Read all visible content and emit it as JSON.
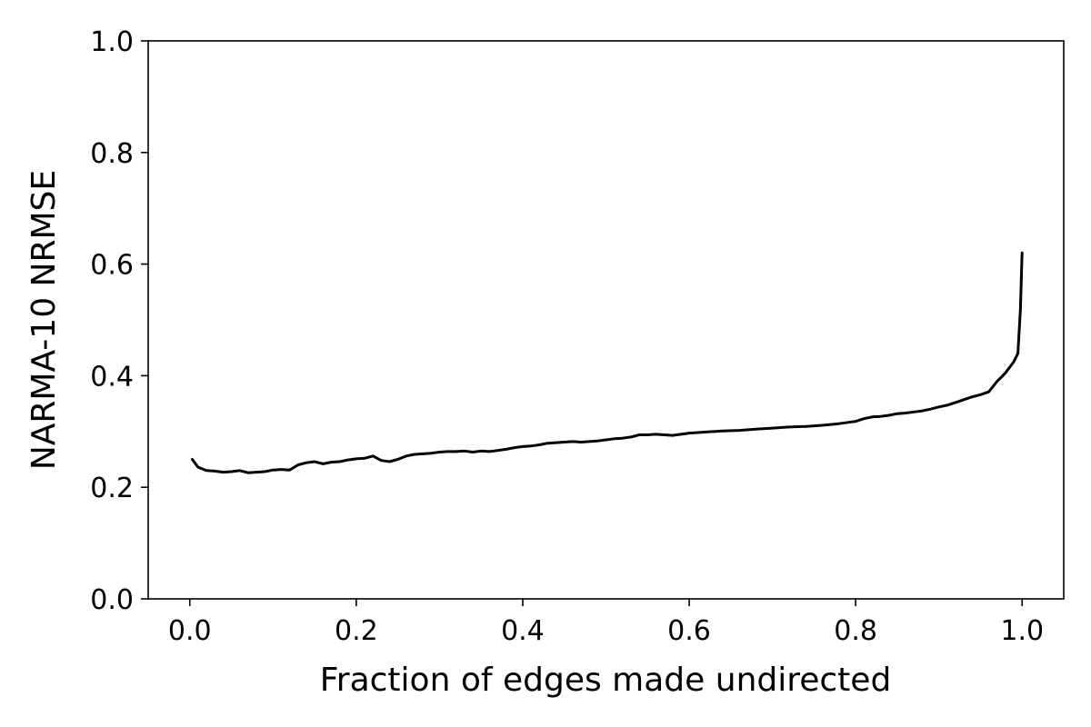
{
  "chart_data": {
    "type": "line",
    "title": "",
    "xlabel": "Fraction of edges made undirected",
    "ylabel": "NARMA-10 NRMSE",
    "xlim": [
      -0.05,
      1.05
    ],
    "ylim": [
      0.0,
      1.0
    ],
    "xticks": [
      0.0,
      0.2,
      0.4,
      0.6,
      0.8,
      1.0
    ],
    "xtick_labels": [
      "0.0",
      "0.2",
      "0.4",
      "0.6",
      "0.8",
      "1.0"
    ],
    "yticks": [
      0.0,
      0.2,
      0.4,
      0.6,
      0.8,
      1.0
    ],
    "ytick_labels": [
      "0.0",
      "0.2",
      "0.4",
      "0.6",
      "0.8",
      "1.0"
    ],
    "grid": false,
    "line_color": "#000000",
    "series": [
      {
        "x": [
          0.003,
          0.01,
          0.02,
          0.03,
          0.04,
          0.05,
          0.06,
          0.07,
          0.08,
          0.09,
          0.1,
          0.11,
          0.12,
          0.13,
          0.14,
          0.15,
          0.16,
          0.17,
          0.18,
          0.19,
          0.2,
          0.21,
          0.22,
          0.23,
          0.24,
          0.25,
          0.26,
          0.27,
          0.28,
          0.29,
          0.3,
          0.31,
          0.32,
          0.33,
          0.34,
          0.35,
          0.36,
          0.37,
          0.38,
          0.39,
          0.4,
          0.41,
          0.42,
          0.43,
          0.44,
          0.45,
          0.46,
          0.47,
          0.48,
          0.49,
          0.5,
          0.51,
          0.52,
          0.53,
          0.54,
          0.55,
          0.56,
          0.57,
          0.58,
          0.59,
          0.6,
          0.62,
          0.64,
          0.66,
          0.68,
          0.7,
          0.72,
          0.74,
          0.76,
          0.78,
          0.8,
          0.81,
          0.82,
          0.83,
          0.84,
          0.85,
          0.86,
          0.87,
          0.88,
          0.89,
          0.9,
          0.91,
          0.92,
          0.93,
          0.94,
          0.95,
          0.96,
          0.97,
          0.975,
          0.98,
          0.985,
          0.99,
          0.995,
          0.998,
          1.0
        ],
        "y": [
          0.25,
          0.236,
          0.23,
          0.229,
          0.227,
          0.228,
          0.23,
          0.226,
          0.227,
          0.228,
          0.231,
          0.232,
          0.231,
          0.24,
          0.244,
          0.246,
          0.242,
          0.245,
          0.246,
          0.249,
          0.251,
          0.252,
          0.256,
          0.248,
          0.246,
          0.25,
          0.256,
          0.259,
          0.26,
          0.261,
          0.263,
          0.264,
          0.264,
          0.265,
          0.263,
          0.265,
          0.264,
          0.266,
          0.268,
          0.271,
          0.273,
          0.274,
          0.276,
          0.279,
          0.28,
          0.281,
          0.282,
          0.281,
          0.282,
          0.283,
          0.285,
          0.287,
          0.288,
          0.29,
          0.294,
          0.294,
          0.295,
          0.294,
          0.293,
          0.295,
          0.297,
          0.299,
          0.301,
          0.302,
          0.304,
          0.306,
          0.308,
          0.309,
          0.311,
          0.314,
          0.318,
          0.323,
          0.326,
          0.327,
          0.329,
          0.332,
          0.333,
          0.335,
          0.337,
          0.34,
          0.344,
          0.347,
          0.352,
          0.357,
          0.362,
          0.366,
          0.371,
          0.39,
          0.397,
          0.405,
          0.415,
          0.425,
          0.44,
          0.52,
          0.62
        ]
      }
    ]
  }
}
